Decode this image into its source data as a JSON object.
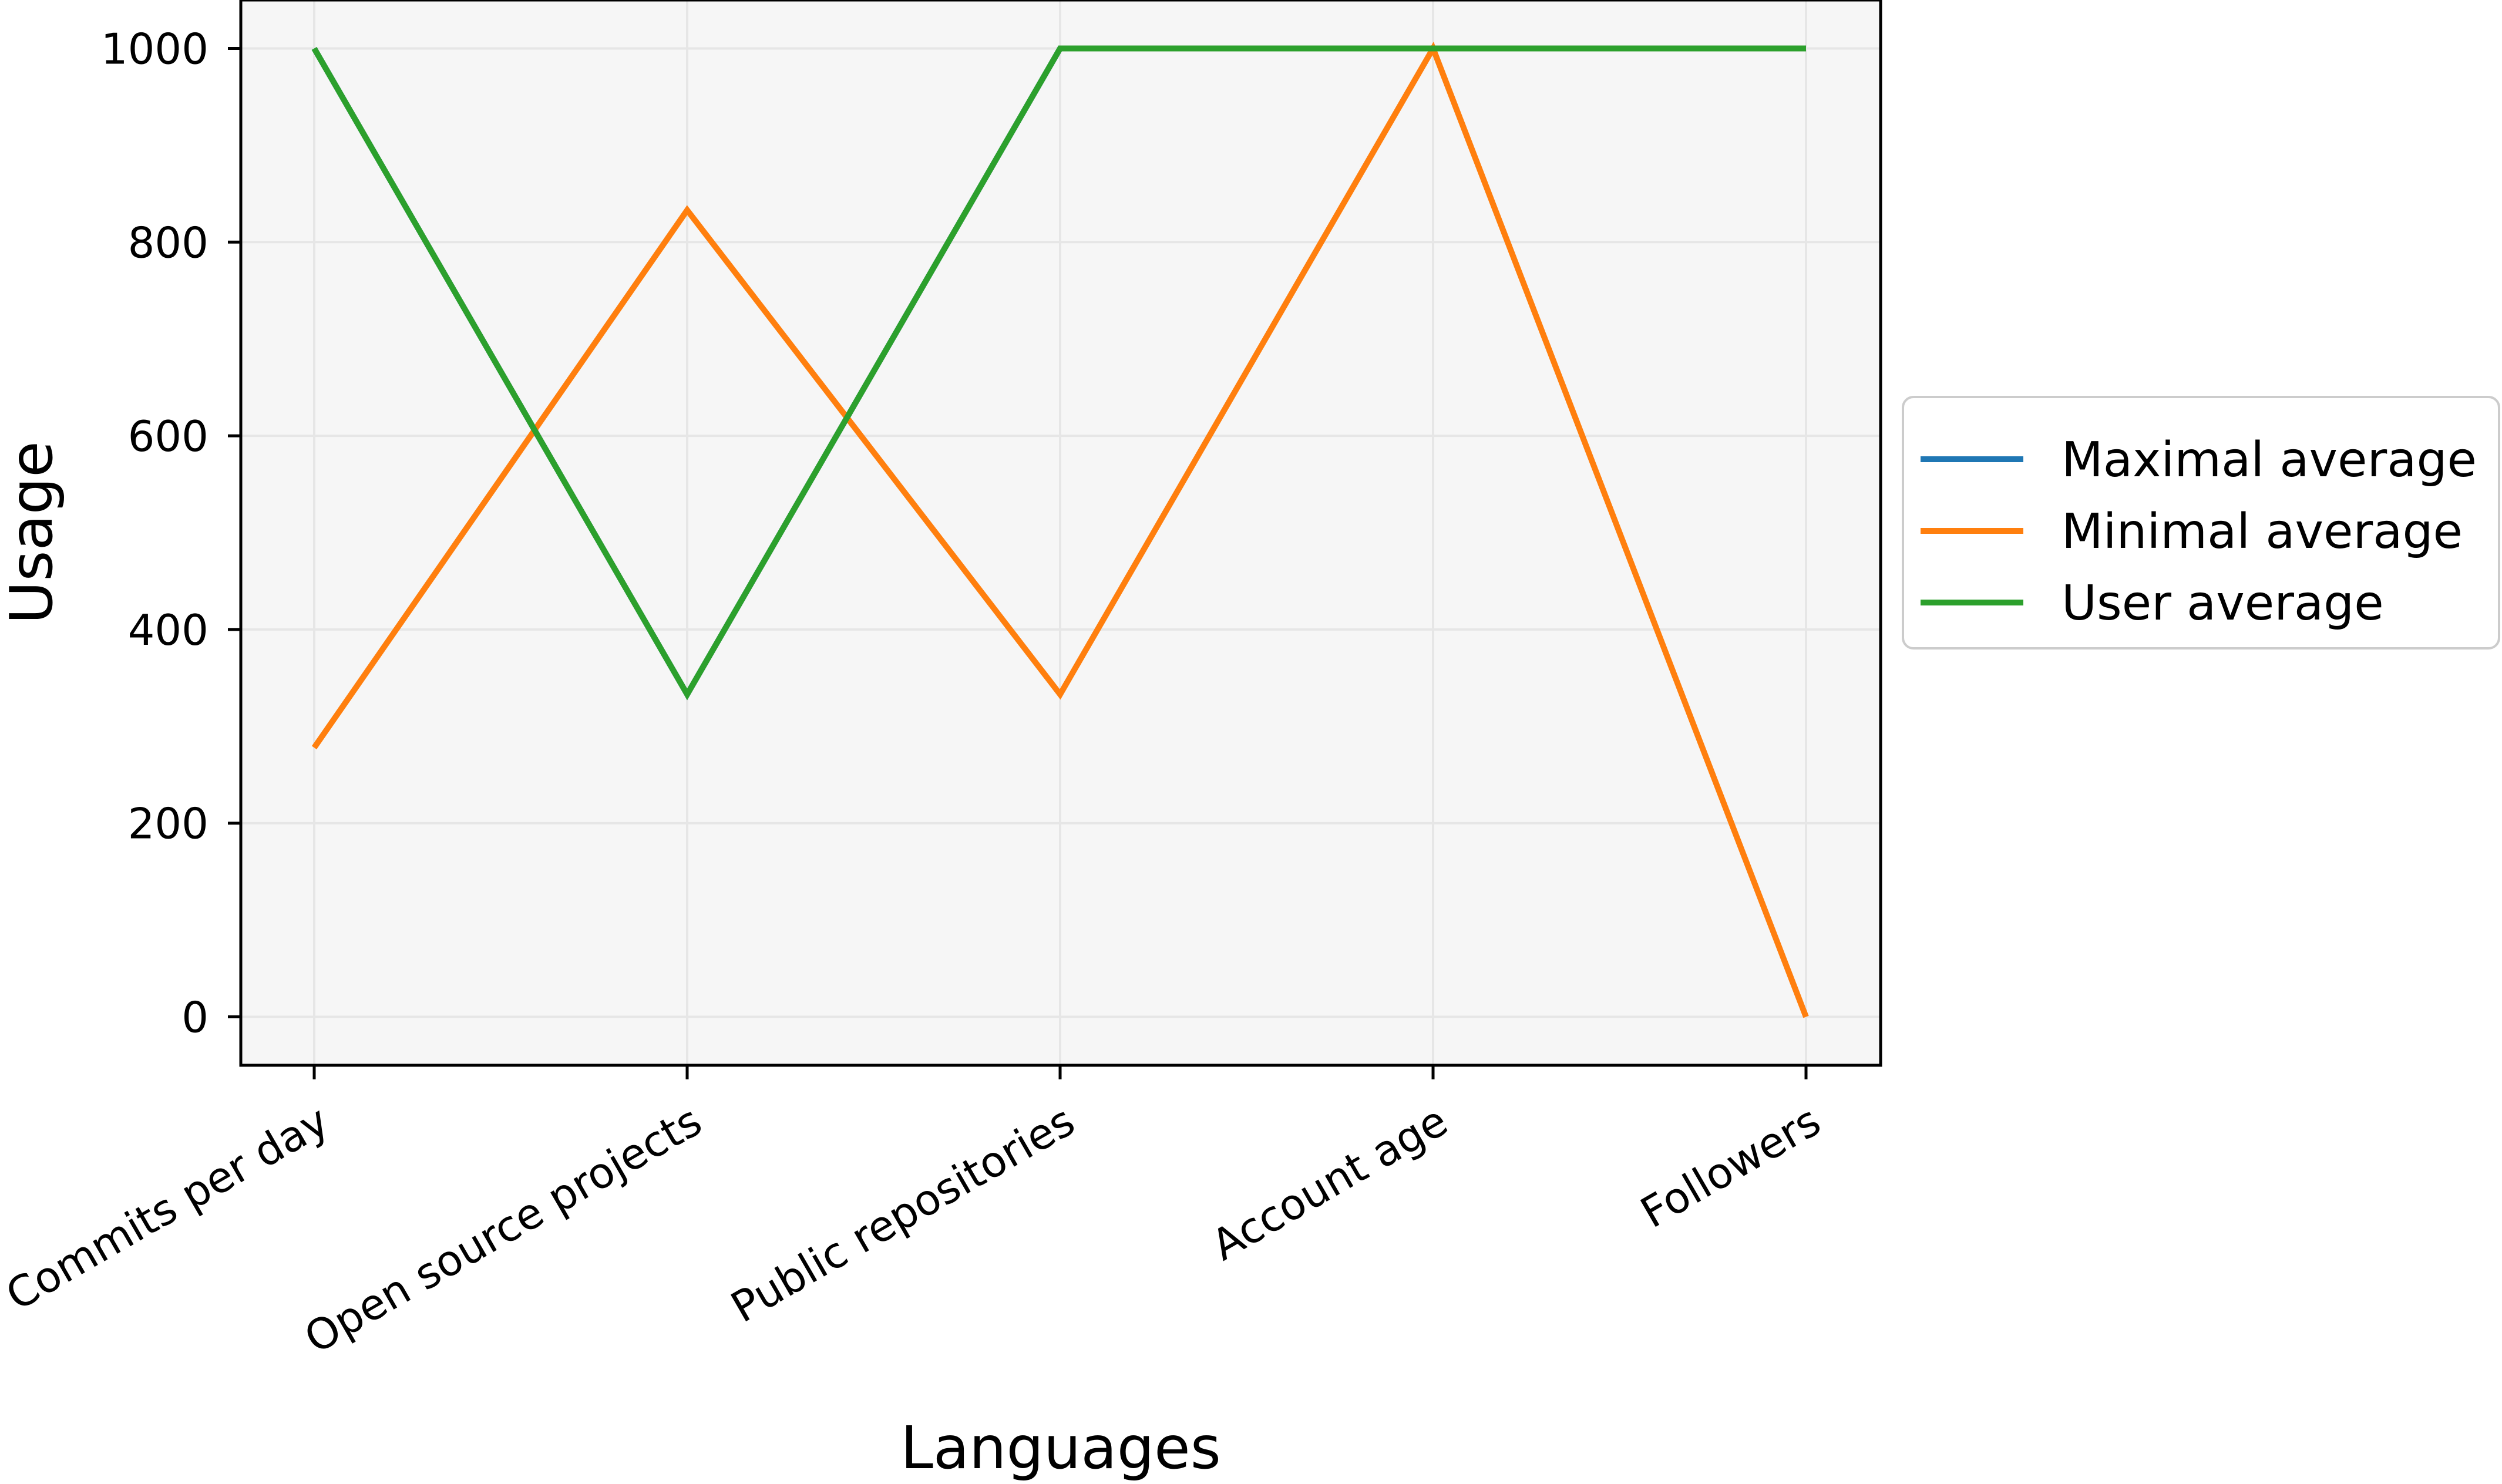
{
  "chart_data": {
    "type": "line",
    "title": "",
    "xlabel": "Languages",
    "ylabel": "Usage",
    "categories": [
      "Commits per day",
      "Open source projects",
      "Public repositories",
      "Account age",
      "Followers"
    ],
    "yticks": [
      "0",
      "200",
      "400",
      "600",
      "800",
      "1000"
    ],
    "ylim": [
      -50,
      1050
    ],
    "grid": true,
    "legend_position": "right",
    "series": [
      {
        "name": "Maximal average",
        "color": "#1f77b4",
        "values": [
          1000,
          333,
          1000,
          1000,
          1000
        ]
      },
      {
        "name": "Minimal average",
        "color": "#ff7f0e",
        "values": [
          278,
          833,
          333,
          1000,
          0
        ]
      },
      {
        "name": "User average",
        "color": "#2ca02c",
        "values": [
          1000,
          333,
          1000,
          1000,
          1000
        ]
      }
    ]
  }
}
